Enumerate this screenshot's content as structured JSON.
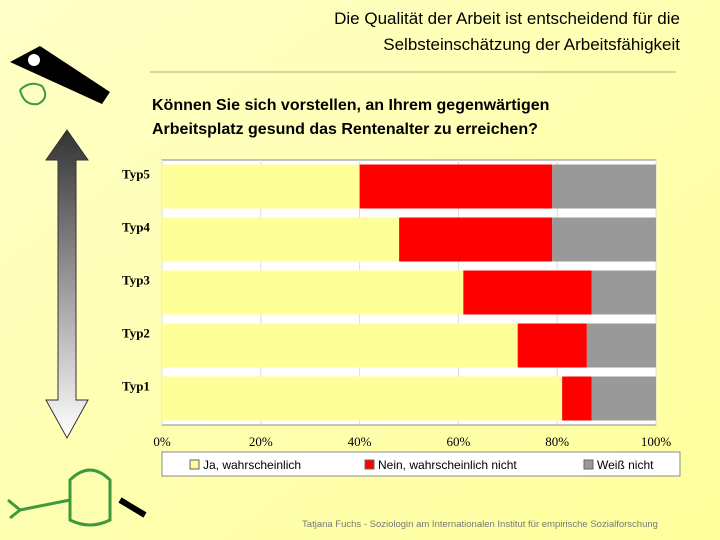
{
  "chart_data": {
    "type": "stacked-hbar",
    "title": [
      "Die Qualität der Arbeit ist entscheidend für die",
      "Selbsteinschätzung der Arbeitsfähigkeit"
    ],
    "subtitle": [
      "Können Sie sich vorstellen, an Ihrem gegenwärtigen",
      "Arbeitsplatz gesund das Rentenalter zu erreichen?"
    ],
    "categories": [
      "Typ1",
      "Typ2",
      "Typ3",
      "Typ4",
      "Typ5"
    ],
    "series": [
      {
        "name": "Ja, wahrscheinlich",
        "color": "#ffff99",
        "values": [
          81,
          72,
          61,
          48,
          40
        ]
      },
      {
        "name": "Nein, wahrscheinlich nicht",
        "color": "#ff0000",
        "values": [
          6,
          14,
          26,
          31,
          39
        ]
      },
      {
        "name": "Weiß nicht",
        "color": "#999999",
        "values": [
          13,
          14,
          13,
          21,
          21
        ]
      }
    ],
    "xlim": [
      0,
      100
    ],
    "xticks": [
      {
        "value": 0,
        "label": "0%"
      },
      {
        "value": 20,
        "label": "20%"
      },
      {
        "value": 40,
        "label": "40%"
      },
      {
        "value": 60,
        "label": "60%"
      },
      {
        "value": 80,
        "label": "80%"
      },
      {
        "value": 100,
        "label": "100%"
      }
    ],
    "footer": "Tatjana Fuchs - Soziologin am Internationalen Institut für empirische Sozialforschung"
  }
}
